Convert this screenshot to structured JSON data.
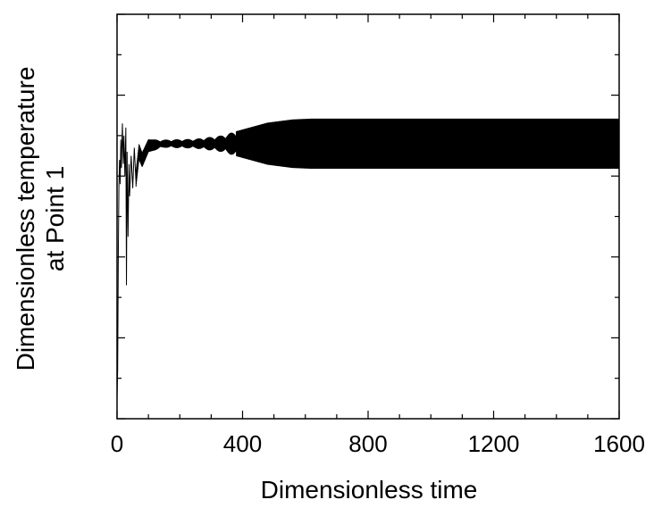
{
  "chart_data": {
    "type": "line",
    "title": "",
    "xlabel": "Dimensionless time",
    "ylabel_lines": [
      "Dimensionless temperature",
      "at Point 1"
    ],
    "xlim": [
      0,
      1600
    ],
    "ylim": [
      0,
      1
    ],
    "x_ticks": [
      "0",
      "400",
      "800",
      "1200",
      "1600"
    ],
    "y_tick_labels_shown": false,
    "grid": false,
    "legend": "none",
    "series": [
      {
        "points": [
          [
            0,
            0.05
          ],
          [
            2,
            0.12
          ],
          [
            4,
            0.4
          ],
          [
            6,
            0.58
          ],
          [
            8,
            0.64
          ],
          [
            10,
            0.58
          ],
          [
            12,
            0.69
          ],
          [
            14,
            0.62
          ],
          [
            17,
            0.73
          ],
          [
            20,
            0.63
          ],
          [
            22,
            0.7
          ],
          [
            25,
            0.6
          ],
          [
            28,
            0.72
          ],
          [
            30,
            0.33
          ],
          [
            32,
            0.66
          ],
          [
            35,
            0.45
          ],
          [
            38,
            0.63
          ],
          [
            40,
            0.55
          ],
          [
            45,
            0.65
          ],
          [
            50,
            0.57
          ],
          [
            55,
            0.67
          ],
          [
            60,
            0.59
          ],
          [
            70,
            0.66
          ],
          [
            80,
            0.64
          ],
          [
            100,
            0.675
          ],
          [
            150,
            0.68
          ],
          [
            200,
            0.68
          ],
          [
            250,
            0.68
          ],
          [
            300,
            0.68
          ],
          [
            400,
            0.68
          ],
          [
            500,
            0.68
          ],
          [
            600,
            0.68
          ],
          [
            800,
            0.68
          ],
          [
            1000,
            0.68
          ],
          [
            1200,
            0.68
          ],
          [
            1400,
            0.68
          ],
          [
            1600,
            0.68
          ]
        ],
        "oscillation_amplitude": [
          [
            0,
            0
          ],
          [
            60,
            0.02
          ],
          [
            150,
            0.01
          ],
          [
            250,
            0.012
          ],
          [
            330,
            0.02
          ],
          [
            400,
            0.035
          ],
          [
            480,
            0.052
          ],
          [
            560,
            0.06
          ],
          [
            620,
            0.062
          ],
          [
            1600,
            0.062
          ]
        ]
      }
    ]
  }
}
